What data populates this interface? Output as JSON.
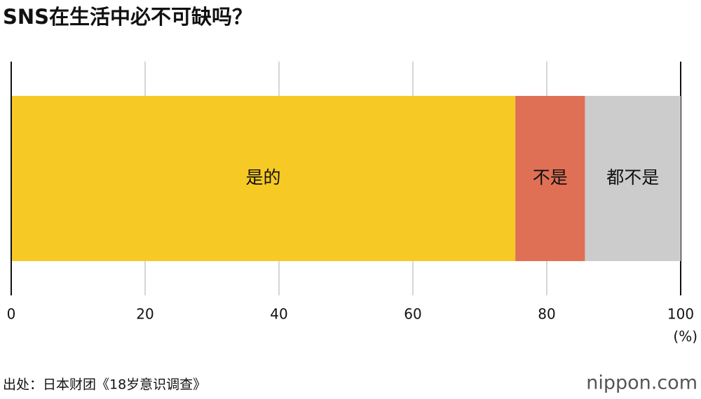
{
  "chart_data": {
    "type": "stacked_bar_horizontal",
    "title": "SNS在生活中必不可缺吗？",
    "xlim": [
      0,
      100
    ],
    "xticks": [
      0,
      20,
      40,
      60,
      80,
      100
    ],
    "x_unit_label": "(%)",
    "grid": true,
    "series": [
      {
        "name": "是的",
        "color": "#f7c924",
        "values": [
          75.3
        ]
      },
      {
        "name": "不是",
        "color": "#e07055",
        "values": [
          10.4
        ]
      },
      {
        "name": "都不是",
        "color": "#cccccc",
        "values": [
          14.3
        ]
      }
    ],
    "source": "出处：日本财团《18岁意识调查》",
    "logo": "nippon.com"
  }
}
